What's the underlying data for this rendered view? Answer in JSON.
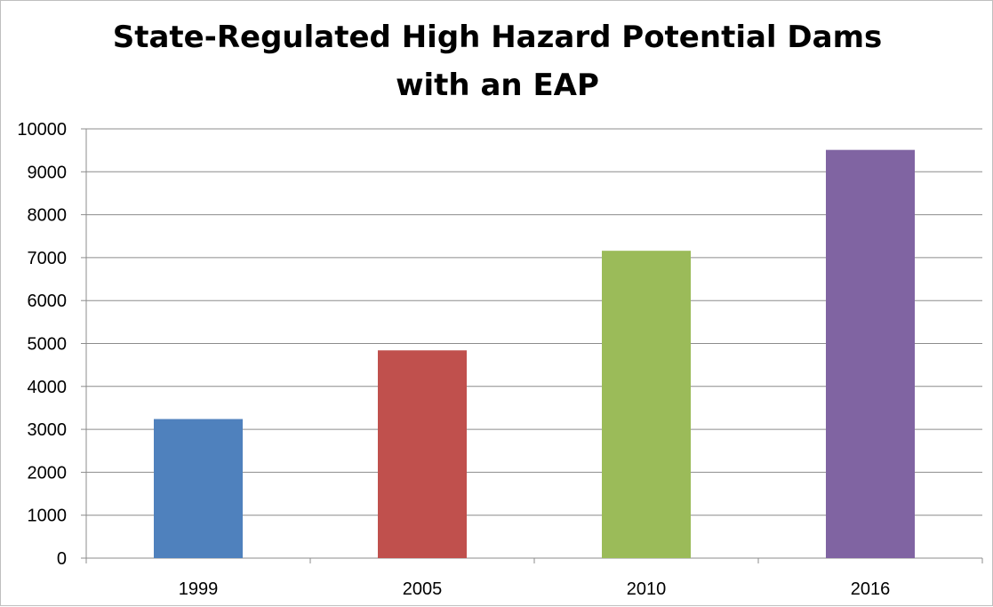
{
  "chart_data": {
    "type": "bar",
    "title_lines": [
      "State-Regulated High Hazard Potential Dams",
      "with an EAP"
    ],
    "categories": [
      "1999",
      "2005",
      "2010",
      "2016"
    ],
    "values": [
      3240,
      4840,
      7160,
      9510
    ],
    "colors": [
      "#4f81bd",
      "#c0504d",
      "#9bbb59",
      "#8064a2"
    ],
    "ylim": [
      0,
      10000
    ],
    "y_ticks": [
      "0",
      "1000",
      "2000",
      "3000",
      "4000",
      "5000",
      "6000",
      "7000",
      "8000",
      "9000",
      "10000"
    ],
    "grid": true,
    "legend": "none",
    "xlabel": "",
    "ylabel": ""
  }
}
